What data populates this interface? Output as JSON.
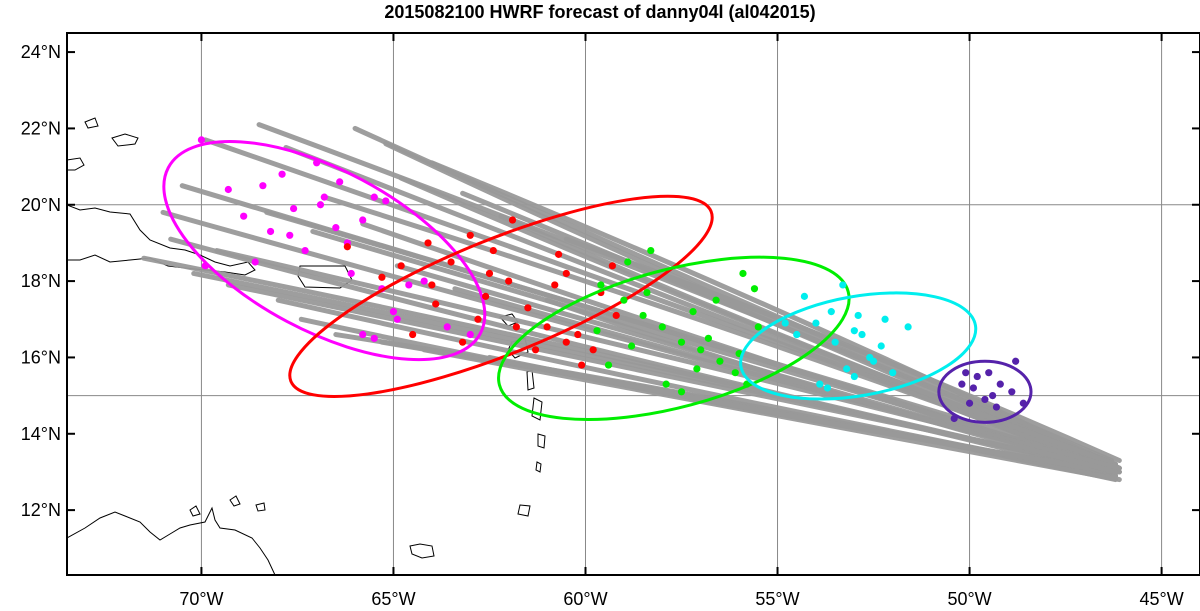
{
  "chart_data": {
    "type": "map",
    "title": "2015082100 HWRF forecast of danny04l (al042015)",
    "x_axis": {
      "range_lon": [
        -73.5,
        -44.0
      ],
      "ticks": [
        {
          "value": -70,
          "label": "70°W"
        },
        {
          "value": -65,
          "label": "65°W"
        },
        {
          "value": -60,
          "label": "60°W"
        },
        {
          "value": -55,
          "label": "55°W"
        },
        {
          "value": -50,
          "label": "50°W"
        },
        {
          "value": -45,
          "label": "45°W"
        }
      ]
    },
    "y_axis": {
      "range_lat": [
        10.3,
        24.5
      ],
      "ticks": [
        {
          "value": 12,
          "label": "12°N"
        },
        {
          "value": 14,
          "label": "14°N"
        },
        {
          "value": 16,
          "label": "16°N"
        },
        {
          "value": 18,
          "label": "18°N"
        },
        {
          "value": 20,
          "label": "20°N"
        },
        {
          "value": 22,
          "label": "22°N"
        },
        {
          "value": 24,
          "label": "24°N"
        }
      ]
    },
    "gridlines": {
      "lon": [
        -70,
        -65,
        -60,
        -55,
        -50,
        -45
      ],
      "lat": [
        15,
        20
      ]
    },
    "track_color": "#999999",
    "tracks": [
      {
        "start": [
          -46.2,
          13.2
        ],
        "end": [
          -68.5,
          22.1
        ]
      },
      {
        "start": [
          -46.1,
          13.1
        ],
        "end": [
          -69.9,
          21.7
        ]
      },
      {
        "start": [
          -46.2,
          13.0
        ],
        "end": [
          -67.8,
          21.5
        ]
      },
      {
        "start": [
          -46.3,
          13.3
        ],
        "end": [
          -66.0,
          22.0
        ]
      },
      {
        "start": [
          -46.2,
          13.2
        ],
        "end": [
          -65.2,
          21.6
        ]
      },
      {
        "start": [
          -46.1,
          13.1
        ],
        "end": [
          -64.0,
          21.1
        ]
      },
      {
        "start": [
          -46.2,
          13.0
        ],
        "end": [
          -63.2,
          20.3
        ]
      },
      {
        "start": [
          -46.3,
          13.2
        ],
        "end": [
          -70.5,
          20.5
        ]
      },
      {
        "start": [
          -46.2,
          13.1
        ],
        "end": [
          -71.0,
          19.8
        ]
      },
      {
        "start": [
          -46.1,
          13.0
        ],
        "end": [
          -70.8,
          19.1
        ]
      },
      {
        "start": [
          -46.2,
          12.9
        ],
        "end": [
          -71.5,
          18.6
        ]
      },
      {
        "start": [
          -46.2,
          13.0
        ],
        "end": [
          -70.2,
          18.2
        ]
      },
      {
        "start": [
          -46.3,
          13.1
        ],
        "end": [
          -69.3,
          17.9
        ]
      },
      {
        "start": [
          -46.2,
          12.9
        ],
        "end": [
          -68.0,
          17.5
        ]
      },
      {
        "start": [
          -46.1,
          13.0
        ],
        "end": [
          -67.4,
          17.0
        ]
      },
      {
        "start": [
          -46.2,
          12.8
        ],
        "end": [
          -66.5,
          16.6
        ]
      },
      {
        "start": [
          -46.2,
          12.9
        ],
        "end": [
          -65.3,
          16.4
        ]
      },
      {
        "start": [
          -46.1,
          12.8
        ],
        "end": [
          -64.2,
          16.2
        ]
      },
      {
        "start": [
          -46.3,
          13.0
        ],
        "end": [
          -62.5,
          16.0
        ]
      },
      {
        "start": [
          -46.2,
          13.2
        ],
        "end": [
          -64.8,
          20.7
        ]
      },
      {
        "start": [
          -46.2,
          13.1
        ],
        "end": [
          -66.8,
          20.2
        ]
      },
      {
        "start": [
          -46.1,
          13.0
        ],
        "end": [
          -68.3,
          19.8
        ]
      },
      {
        "start": [
          -46.2,
          13.1
        ],
        "end": [
          -67.1,
          19.3
        ]
      },
      {
        "start": [
          -46.3,
          13.0
        ],
        "end": [
          -65.8,
          19.5
        ]
      },
      {
        "start": [
          -46.2,
          13.2
        ],
        "end": [
          -62.2,
          19.7
        ]
      },
      {
        "start": [
          -46.1,
          13.3
        ],
        "end": [
          -60.5,
          19.1
        ]
      },
      {
        "start": [
          -46.2,
          13.1
        ],
        "end": [
          -69.6,
          18.8
        ]
      },
      {
        "start": [
          -46.2,
          13.0
        ],
        "end": [
          -64.9,
          18.4
        ]
      },
      {
        "start": [
          -46.1,
          13.1
        ],
        "end": [
          -63.4,
          17.8
        ]
      },
      {
        "start": [
          -46.2,
          13.0
        ],
        "end": [
          -61.0,
          17.5
        ]
      }
    ],
    "forecast_groups": [
      {
        "color": "#ff00ff",
        "ellipse": {
          "center": [
            -66.8,
            18.8
          ],
          "semi_axes_deg": [
            4.6,
            2.1
          ],
          "rotation_deg": 28
        },
        "points": [
          [
            -70.0,
            21.7
          ],
          [
            -69.3,
            20.4
          ],
          [
            -68.9,
            19.7
          ],
          [
            -68.2,
            19.3
          ],
          [
            -67.0,
            21.1
          ],
          [
            -66.4,
            20.6
          ],
          [
            -67.6,
            19.9
          ],
          [
            -66.9,
            20.0
          ],
          [
            -65.5,
            20.2
          ],
          [
            -65.8,
            19.6
          ],
          [
            -66.2,
            19.0
          ],
          [
            -67.3,
            18.8
          ],
          [
            -66.1,
            18.2
          ],
          [
            -65.3,
            17.8
          ],
          [
            -64.6,
            17.9
          ],
          [
            -65.0,
            17.2
          ],
          [
            -65.8,
            16.6
          ],
          [
            -65.5,
            16.5
          ],
          [
            -68.6,
            18.5
          ],
          [
            -69.9,
            18.4
          ],
          [
            -66.5,
            19.4
          ],
          [
            -67.9,
            20.8
          ],
          [
            -63.6,
            16.8
          ],
          [
            -63.0,
            16.6
          ],
          [
            -64.2,
            18.0
          ],
          [
            -65.2,
            20.1
          ],
          [
            -68.4,
            20.5
          ],
          [
            -66.8,
            20.2
          ],
          [
            -67.7,
            19.2
          ],
          [
            -64.9,
            17.0
          ]
        ]
      },
      {
        "color": "#ff0000",
        "ellipse": {
          "center": [
            -62.2,
            17.6
          ],
          "semi_axes_deg": [
            5.9,
            1.5
          ],
          "rotation_deg": -22
        },
        "points": [
          [
            -66.2,
            18.9
          ],
          [
            -64.8,
            18.4
          ],
          [
            -64.0,
            17.9
          ],
          [
            -63.5,
            18.5
          ],
          [
            -63.0,
            19.2
          ],
          [
            -62.4,
            18.8
          ],
          [
            -62.0,
            18.0
          ],
          [
            -61.5,
            17.3
          ],
          [
            -61.0,
            16.8
          ],
          [
            -60.5,
            16.4
          ],
          [
            -60.8,
            17.9
          ],
          [
            -61.9,
            19.6
          ],
          [
            -62.8,
            17.0
          ],
          [
            -63.2,
            16.4
          ],
          [
            -61.3,
            16.2
          ],
          [
            -60.2,
            16.6
          ],
          [
            -59.6,
            17.7
          ],
          [
            -60.5,
            18.2
          ],
          [
            -59.3,
            18.4
          ],
          [
            -62.5,
            18.2
          ],
          [
            -65.3,
            18.1
          ],
          [
            -64.5,
            16.6
          ],
          [
            -63.9,
            17.4
          ],
          [
            -60.1,
            15.8
          ],
          [
            -61.8,
            16.8
          ],
          [
            -59.8,
            16.2
          ],
          [
            -62.6,
            17.6
          ],
          [
            -64.1,
            19.0
          ],
          [
            -60.7,
            18.7
          ],
          [
            -59.2,
            17.1
          ]
        ]
      },
      {
        "color": "#00ee00",
        "ellipse": {
          "center": [
            -57.7,
            16.5
          ],
          "semi_axes_deg": [
            4.7,
            1.8
          ],
          "rotation_deg": -15
        },
        "points": [
          [
            -59.6,
            17.9
          ],
          [
            -59.0,
            17.5
          ],
          [
            -58.5,
            17.1
          ],
          [
            -58.0,
            16.8
          ],
          [
            -57.5,
            16.4
          ],
          [
            -57.0,
            16.2
          ],
          [
            -56.5,
            15.9
          ],
          [
            -56.0,
            16.1
          ],
          [
            -55.6,
            17.8
          ],
          [
            -55.9,
            18.2
          ],
          [
            -57.2,
            17.2
          ],
          [
            -58.8,
            16.3
          ],
          [
            -59.4,
            15.8
          ],
          [
            -57.9,
            15.3
          ],
          [
            -57.5,
            15.1
          ],
          [
            -58.3,
            18.8
          ],
          [
            -56.6,
            17.5
          ],
          [
            -55.5,
            16.8
          ],
          [
            -56.8,
            16.5
          ],
          [
            -58.4,
            17.7
          ],
          [
            -59.7,
            16.7
          ],
          [
            -57.1,
            15.7
          ],
          [
            -55.8,
            15.3
          ],
          [
            -58.9,
            18.5
          ],
          [
            -56.1,
            15.6
          ]
        ]
      },
      {
        "color": "#00eeee",
        "ellipse": {
          "center": [
            -52.9,
            16.3
          ],
          "semi_axes_deg": [
            3.1,
            1.3
          ],
          "rotation_deg": -10
        },
        "points": [
          [
            -54.5,
            16.6
          ],
          [
            -54.0,
            16.9
          ],
          [
            -53.5,
            16.4
          ],
          [
            -53.0,
            16.7
          ],
          [
            -52.6,
            16.0
          ],
          [
            -52.3,
            16.3
          ],
          [
            -51.6,
            16.8
          ],
          [
            -52.5,
            15.9
          ],
          [
            -53.7,
            15.2
          ],
          [
            -53.2,
            15.7
          ],
          [
            -54.8,
            16.9
          ],
          [
            -53.3,
            17.9
          ],
          [
            -52.8,
            16.6
          ],
          [
            -52.2,
            17.0
          ],
          [
            -53.9,
            15.3
          ],
          [
            -53.0,
            15.5
          ],
          [
            -52.0,
            15.6
          ],
          [
            -53.6,
            17.2
          ],
          [
            -54.3,
            17.6
          ],
          [
            -52.9,
            17.1
          ]
        ]
      },
      {
        "color": "#5522aa",
        "ellipse": {
          "center": [
            -49.6,
            15.1
          ],
          "semi_axes_deg": [
            1.2,
            0.8
          ],
          "rotation_deg": 0
        },
        "points": [
          [
            -50.2,
            15.3
          ],
          [
            -49.8,
            15.5
          ],
          [
            -49.5,
            15.6
          ],
          [
            -49.2,
            15.3
          ],
          [
            -48.9,
            15.1
          ],
          [
            -49.6,
            14.9
          ],
          [
            -50.0,
            14.8
          ],
          [
            -49.3,
            14.7
          ],
          [
            -48.8,
            15.9
          ],
          [
            -48.6,
            14.8
          ],
          [
            -50.4,
            14.4
          ],
          [
            -49.9,
            15.2
          ],
          [
            -49.4,
            15.0
          ],
          [
            -50.1,
            15.6
          ]
        ]
      }
    ],
    "coastlines": "Caribbean islands and South American coast outlines"
  }
}
